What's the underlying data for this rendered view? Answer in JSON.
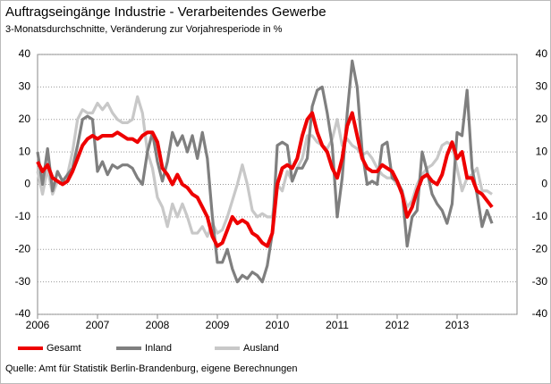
{
  "chart_data": {
    "type": "line",
    "title": "Auftragseingänge  Industrie  - Verarbeitendes Gewerbe",
    "subtitle": "3-Monatsdurchschnitte, Veränderung zur Vorjahresperiode in %",
    "source": "Quelle: Amt für Statistik Berlin-Brandenburg, eigene Berechnungen",
    "x": [
      2006.0,
      2006.083,
      2006.167,
      2006.25,
      2006.333,
      2006.417,
      2006.5,
      2006.583,
      2006.667,
      2006.75,
      2006.833,
      2006.917,
      2007.0,
      2007.083,
      2007.167,
      2007.25,
      2007.333,
      2007.417,
      2007.5,
      2007.583,
      2007.667,
      2007.75,
      2007.833,
      2007.917,
      2008.0,
      2008.083,
      2008.167,
      2008.25,
      2008.333,
      2008.417,
      2008.5,
      2008.583,
      2008.667,
      2008.75,
      2008.833,
      2008.917,
      2009.0,
      2009.083,
      2009.167,
      2009.25,
      2009.333,
      2009.417,
      2009.5,
      2009.583,
      2009.667,
      2009.75,
      2009.833,
      2009.917,
      2010.0,
      2010.083,
      2010.167,
      2010.25,
      2010.333,
      2010.417,
      2010.5,
      2010.583,
      2010.667,
      2010.75,
      2010.833,
      2010.917,
      2011.0,
      2011.083,
      2011.167,
      2011.25,
      2011.333,
      2011.417,
      2011.5,
      2011.583,
      2011.667,
      2011.75,
      2011.833,
      2011.917,
      2012.0,
      2012.083,
      2012.167,
      2012.25,
      2012.333,
      2012.417,
      2012.5,
      2012.583,
      2012.667,
      2012.75,
      2012.833,
      2012.917,
      2013.0,
      2013.083,
      2013.167,
      2013.25,
      2013.333,
      2013.417,
      2013.5,
      2013.583
    ],
    "series": [
      {
        "name": "Gesamt",
        "color": "#ee0000",
        "values": [
          7,
          4,
          6,
          2,
          1,
          0,
          1,
          4,
          8,
          12,
          14,
          15,
          14,
          15,
          15,
          15,
          16,
          15,
          14,
          14,
          13,
          15,
          16,
          16,
          13,
          5,
          3,
          0,
          3,
          0,
          -1,
          -3,
          -4,
          -7,
          -10,
          -16,
          -19,
          -18,
          -14,
          -10,
          -12,
          -11,
          -12,
          -15,
          -16,
          -18,
          -19,
          -15,
          0,
          5,
          6,
          5,
          8,
          15,
          20,
          22,
          16,
          12,
          10,
          5,
          2,
          8,
          18,
          22,
          15,
          8,
          5,
          4,
          4,
          6,
          5,
          4,
          1,
          -3,
          -10,
          -7,
          -2,
          2,
          3,
          1,
          0,
          3,
          9,
          13,
          8,
          10,
          2,
          2,
          -2,
          -3,
          -5,
          -7
        ]
      },
      {
        "name": "Inland",
        "color": "#7f7f7f",
        "values": [
          10,
          0,
          11,
          -2,
          4,
          1,
          3,
          5,
          12,
          20,
          21,
          20,
          4,
          7,
          3,
          6,
          5,
          6,
          6,
          5,
          2,
          0,
          10,
          16,
          7,
          1,
          7,
          16,
          12,
          15,
          10,
          15,
          8,
          16,
          8,
          -10,
          -24,
          -24,
          -20,
          -26,
          -30,
          -28,
          -29,
          -27,
          -28,
          -30,
          -25,
          -15,
          12,
          13,
          12,
          1,
          5,
          5,
          8,
          24,
          29,
          30,
          22,
          12,
          -10,
          2,
          22,
          38,
          30,
          10,
          0,
          1,
          0,
          12,
          13,
          2,
          1,
          -2,
          -19,
          -10,
          -8,
          10,
          4,
          -3,
          -6,
          -8,
          -12,
          -6,
          16,
          15,
          29,
          5,
          -3,
          -13,
          -8,
          -12
        ]
      },
      {
        "name": "Ausland",
        "color": "#c8c8c8",
        "values": [
          4,
          -3,
          5,
          -3,
          1,
          0,
          3,
          10,
          20,
          23,
          22,
          22,
          25,
          23,
          25,
          22,
          20,
          19,
          19,
          20,
          27,
          22,
          10,
          5,
          -4,
          -7,
          -13,
          -6,
          -10,
          -6,
          -10,
          -15,
          -15,
          -13,
          -16,
          -12,
          -15,
          -14,
          -10,
          -5,
          0,
          6,
          0,
          -8,
          -10,
          -9,
          -10,
          -10,
          0,
          -2,
          4,
          1,
          5,
          8,
          15,
          15,
          13,
          12,
          11,
          14,
          20,
          12,
          14,
          12,
          11,
          9,
          10,
          8,
          5,
          3,
          2,
          2,
          0,
          -2,
          -7,
          -5,
          0,
          3,
          5,
          6,
          8,
          12,
          13,
          12,
          5,
          -2,
          2,
          3,
          5,
          -2,
          -2,
          -3
        ]
      }
    ],
    "xlim": [
      2006,
      2014
    ],
    "xticks": [
      2006,
      2007,
      2008,
      2009,
      2010,
      2011,
      2012,
      2013
    ],
    "ylim": [
      -40,
      40
    ],
    "yticks": [
      -40,
      -30,
      -20,
      -10,
      0,
      10,
      20,
      30,
      40
    ],
    "grid": true
  }
}
